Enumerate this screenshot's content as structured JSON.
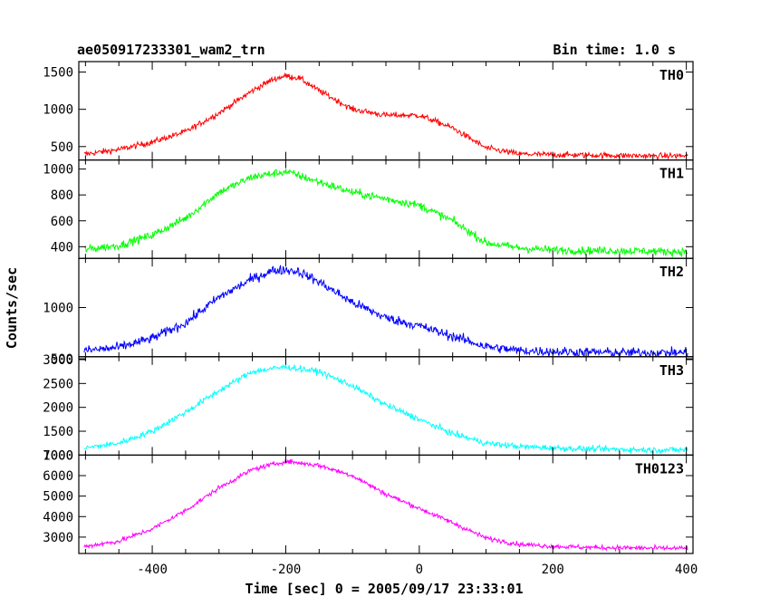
{
  "chart_data": {
    "type": "line",
    "title": "ae050917233301_wam2_trn",
    "subtitle": "Bin time: 1.0 s",
    "xlabel": "Time [sec] 0 = 2005/09/17 23:33:01",
    "ylabel": "Counts/sec",
    "xlim": [
      -510,
      410
    ],
    "x_ticks": [
      -400,
      -200,
      0,
      200,
      400
    ],
    "grid": false,
    "panels": [
      {
        "name": "TH0",
        "color": "#ff0000",
        "ylim": [
          320,
          1640
        ],
        "y_ticks": [
          500,
          1000,
          1500
        ],
        "noise": 38,
        "x": [
          -500,
          -450,
          -400,
          -350,
          -300,
          -250,
          -220,
          -200,
          -180,
          -150,
          -100,
          -50,
          0,
          50,
          100,
          150,
          200,
          250,
          300,
          350,
          400
        ],
        "y": [
          400,
          460,
          560,
          700,
          950,
          1250,
          1400,
          1450,
          1420,
          1250,
          1000,
          920,
          920,
          750,
          480,
          400,
          390,
          385,
          380,
          375,
          375
        ]
      },
      {
        "name": "TH1",
        "color": "#00ff00",
        "ylim": [
          310,
          1070
        ],
        "y_ticks": [
          400,
          600,
          800,
          1000
        ],
        "noise": 30,
        "x": [
          -500,
          -450,
          -400,
          -350,
          -300,
          -250,
          -200,
          -150,
          -100,
          -50,
          0,
          50,
          100,
          150,
          200,
          250,
          300,
          350,
          400
        ],
        "y": [
          380,
          410,
          490,
          620,
          820,
          940,
          980,
          900,
          820,
          770,
          720,
          600,
          430,
          390,
          375,
          370,
          370,
          365,
          360
        ]
      },
      {
        "name": "TH2",
        "color": "#0000ff",
        "ylim": [
          520,
          1480
        ],
        "y_ticks": [
          500,
          1000
        ],
        "noise": 45,
        "x": [
          -500,
          -450,
          -400,
          -350,
          -300,
          -250,
          -220,
          -200,
          -180,
          -150,
          -100,
          -50,
          0,
          50,
          100,
          150,
          200,
          250,
          300,
          350,
          400
        ],
        "y": [
          580,
          610,
          700,
          850,
          1100,
          1280,
          1360,
          1370,
          1350,
          1250,
          1050,
          900,
          820,
          720,
          620,
          580,
          570,
          565,
          560,
          560,
          560
        ]
      },
      {
        "name": "TH3",
        "color": "#00ffff",
        "ylim": [
          1000,
          3060
        ],
        "y_ticks": [
          1000,
          1500,
          2000,
          2500,
          3000
        ],
        "noise": 60,
        "x": [
          -500,
          -450,
          -400,
          -350,
          -300,
          -250,
          -200,
          -150,
          -100,
          -50,
          0,
          50,
          100,
          150,
          200,
          250,
          300,
          350,
          400
        ],
        "y": [
          1150,
          1250,
          1500,
          1900,
          2350,
          2750,
          2850,
          2750,
          2450,
          2050,
          1750,
          1450,
          1250,
          1180,
          1150,
          1130,
          1120,
          1110,
          1110
        ]
      },
      {
        "name": "TH0123",
        "color": "#ff00ff",
        "ylim": [
          2200,
          7000
        ],
        "y_ticks": [
          3000,
          4000,
          5000,
          6000,
          7000
        ],
        "noise": 110,
        "x": [
          -500,
          -450,
          -400,
          -350,
          -300,
          -250,
          -200,
          -150,
          -100,
          -50,
          0,
          50,
          100,
          150,
          200,
          250,
          300,
          350,
          400
        ],
        "y": [
          2550,
          2800,
          3400,
          4300,
          5400,
          6300,
          6700,
          6500,
          6000,
          5100,
          4400,
          3700,
          2950,
          2650,
          2550,
          2500,
          2480,
          2460,
          2450
        ]
      }
    ]
  }
}
